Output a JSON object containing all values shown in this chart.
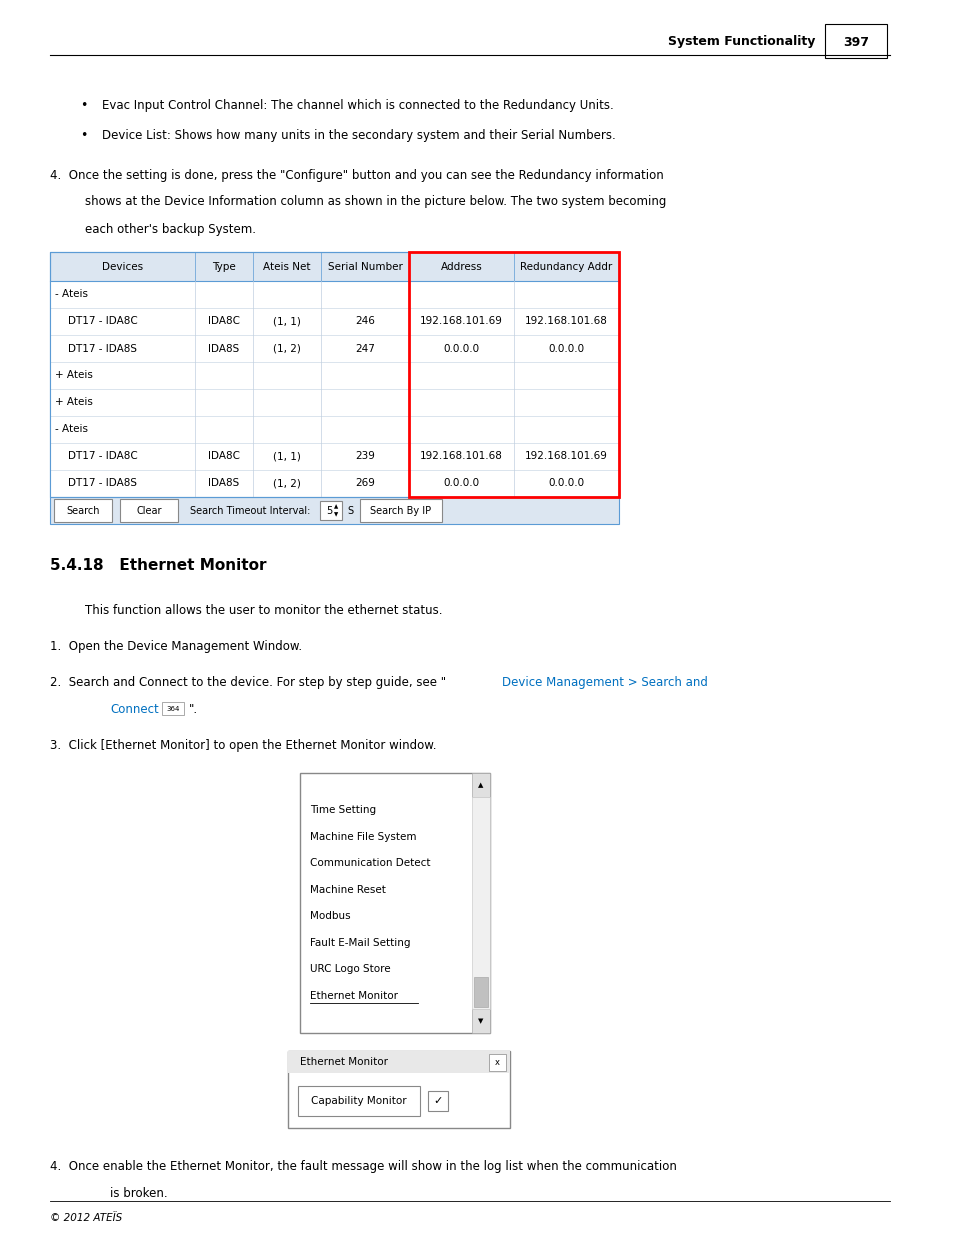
{
  "page_width": 9.54,
  "page_height": 12.35,
  "bg_color": "#ffffff",
  "header_text": "System Functionality",
  "page_number": "397",
  "bullet1": "Evac Input Control Channel: The channel which is connected to the Redundancy Units.",
  "bullet2": "Device List: Shows how many units in the secondary system and their Serial Numbers.",
  "para4_line1": "4.  Once the setting is done, press the \"Configure\" button and you can see the Redundancy information",
  "para4_line2": "shows at the Device Information column as shown in the picture below. The two system becoming",
  "para4_line3": "each other's backup System.",
  "table_headers": [
    "Devices",
    "Type",
    "Ateis Net",
    "Serial Number",
    "Address",
    "Redundancy Addr"
  ],
  "table_rows": [
    [
      "- Ateis",
      "",
      "",
      "",
      "",
      ""
    ],
    [
      "    DT17 - IDA8C",
      "IDA8C",
      "(1, 1)",
      "246",
      "192.168.101.69",
      "192.168.101.68"
    ],
    [
      "    DT17 - IDA8S",
      "IDA8S",
      "(1, 2)",
      "247",
      "0.0.0.0",
      "0.0.0.0"
    ],
    [
      "+ Ateis",
      "",
      "",
      "",
      "",
      ""
    ],
    [
      "+ Ateis",
      "",
      "",
      "",
      "",
      ""
    ],
    [
      "- Ateis",
      "",
      "",
      "",
      "",
      ""
    ],
    [
      "    DT17 - IDA8C",
      "IDA8C",
      "(1, 1)",
      "239",
      "192.168.101.68",
      "192.168.101.69"
    ],
    [
      "    DT17 - IDA8S",
      "IDA8S",
      "(1, 2)",
      "269",
      "0.0.0.0",
      "0.0.0.0"
    ]
  ],
  "section_title": "5.4.18   Ethernet Monitor",
  "intro_text": "This function allows the user to monitor the ethernet status.",
  "step1": "1.  Open the Device Management Window.",
  "step3": "3.  Click [Ethernet Monitor] to open the Ethernet Monitor window.",
  "menu_items": [
    "Time Setting",
    "Machine File System",
    "Communication Detect",
    "Machine Reset",
    "Modbus",
    "Fault E-Mail Setting",
    "URC Logo Store",
    "Ethernet Monitor"
  ],
  "dialog_title": "Ethernet Monitor",
  "dialog_button": "Capability Monitor",
  "step4_line1": "4.  Once enable the Ethernet Monitor, the fault message will show in the log list when the communication",
  "step4_line2": "is broken.",
  "footer_text": "© 2012 ATEÏS",
  "table_bg_light": "#dce6f1",
  "table_bg_white": "#ffffff",
  "red_border_color": "#ff0000",
  "blue_link_color": "#0070c0",
  "dark_text": "#000000"
}
